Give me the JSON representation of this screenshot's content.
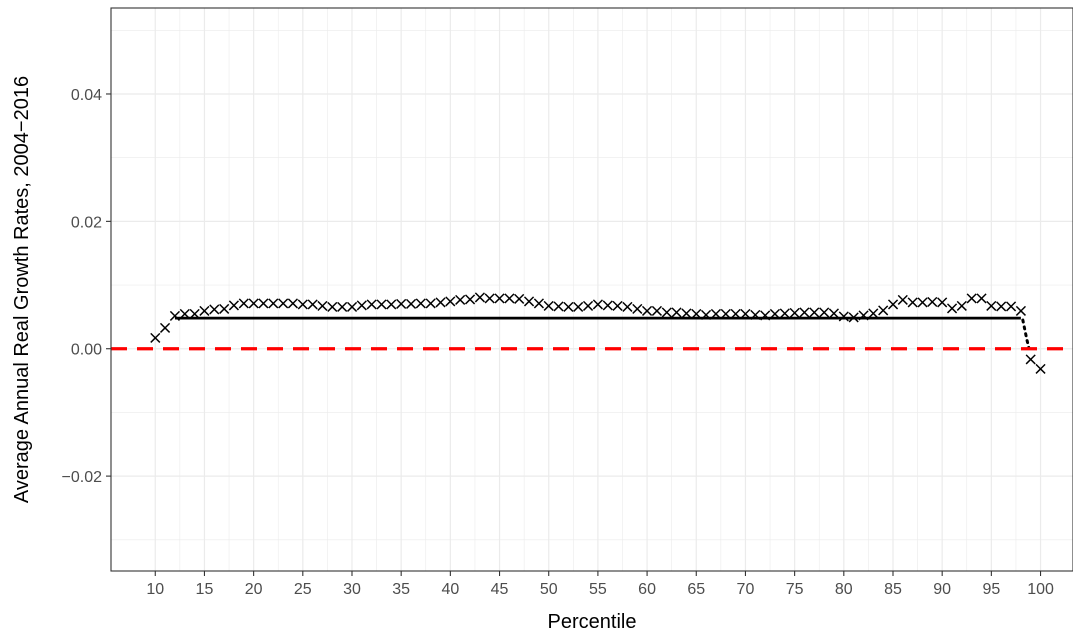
{
  "chart_data": {
    "type": "scatter",
    "title": "",
    "xlabel": "Percentile",
    "ylabel": "Average Annual Real Growth Rates, 2004−2016",
    "xlim": [
      5.5,
      103.3
    ],
    "ylim": [
      -0.0349,
      0.0535
    ],
    "x_ticks": [
      10,
      15,
      20,
      25,
      30,
      35,
      40,
      45,
      50,
      55,
      60,
      65,
      70,
      75,
      80,
      85,
      90,
      95,
      100
    ],
    "y_ticks": [
      -0.02,
      0.0,
      0.02,
      0.04
    ],
    "y_tick_labels": [
      "−0.02",
      "0.00",
      "0.02",
      "0.04"
    ],
    "grid": true,
    "series": [
      {
        "marker": "x",
        "color": "#000000",
        "x": [
          10,
          11,
          12,
          13,
          14,
          15,
          16,
          17,
          18,
          19,
          20,
          21,
          22,
          23,
          24,
          25,
          26,
          27,
          28,
          29,
          30,
          31,
          32,
          33,
          34,
          35,
          36,
          37,
          38,
          39,
          40,
          41,
          42,
          43,
          44,
          45,
          46,
          47,
          48,
          49,
          50,
          51,
          52,
          53,
          54,
          55,
          56,
          57,
          58,
          59,
          60,
          61,
          62,
          63,
          64,
          65,
          66,
          67,
          68,
          69,
          70,
          71,
          72,
          73,
          74,
          75,
          76,
          77,
          78,
          79,
          80,
          81,
          82,
          83,
          84,
          85,
          86,
          87,
          88,
          89,
          90,
          91,
          92,
          93,
          94,
          95,
          96,
          97,
          98,
          99,
          100
        ],
        "y": [
          0.0018,
          0.0033,
          0.0052,
          0.0055,
          0.0055,
          0.006,
          0.0062,
          0.0063,
          0.0069,
          0.0072,
          0.0072,
          0.0072,
          0.0072,
          0.0072,
          0.0072,
          0.007,
          0.007,
          0.0068,
          0.0066,
          0.0066,
          0.0066,
          0.0069,
          0.007,
          0.007,
          0.007,
          0.0071,
          0.0071,
          0.0072,
          0.0072,
          0.0073,
          0.0075,
          0.0077,
          0.0078,
          0.0081,
          0.008,
          0.008,
          0.008,
          0.0079,
          0.0075,
          0.0072,
          0.0068,
          0.0067,
          0.0066,
          0.0066,
          0.0068,
          0.007,
          0.0069,
          0.0068,
          0.0066,
          0.0063,
          0.006,
          0.006,
          0.0058,
          0.0058,
          0.0056,
          0.0055,
          0.0054,
          0.0055,
          0.0055,
          0.0055,
          0.0055,
          0.0054,
          0.0053,
          0.0055,
          0.0056,
          0.0057,
          0.0058,
          0.0058,
          0.0058,
          0.0056,
          0.0051,
          0.005,
          0.0053,
          0.0056,
          0.0061,
          0.007,
          0.0077,
          0.0073,
          0.0073,
          0.0074,
          0.0073,
          0.0064,
          0.0068,
          0.008,
          0.008,
          0.0068,
          0.0067,
          0.0067,
          0.006,
          -0.0016,
          -0.0031
        ]
      },
      {
        "type": "line",
        "color": "#000000",
        "x": [
          12,
          98
        ],
        "y": [
          0.0048,
          0.0048
        ]
      },
      {
        "type": "line",
        "color": "#000000",
        "dash": "dotted",
        "x": [
          98.2,
          98.4,
          98.6,
          98.8
        ],
        "y": [
          0.0045,
          0.003,
          0.0015,
          0.0002
        ]
      },
      {
        "type": "hline",
        "color": "#ff0000",
        "dash": "dashed",
        "y": 0.0
      }
    ]
  }
}
